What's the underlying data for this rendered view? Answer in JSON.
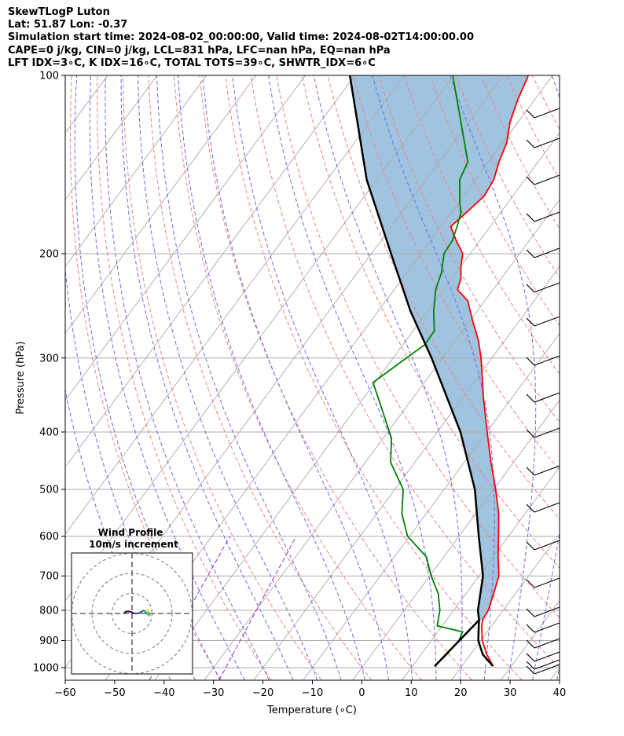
{
  "header": {
    "line1": "SkewTLogP Luton",
    "line2": "Lat: 51.87   Lon: -0.37",
    "line3": "Simulation start time: 2024-08-02_00:00:00, Valid time: 2024-08-02T14:00:00.00",
    "line4": "CAPE=0 j/kg, CIN=0 j/kg, LCL=831 hPa, LFC=nan hPa, EQ=nan hPa",
    "line5": "LFT IDX=3∘C, K IDX=16∘C, TOTAL TOTS=39∘C, SHWTR_IDX=6∘C"
  },
  "colors": {
    "temperature": "#ff0000",
    "dewpoint": "#008000",
    "parcel": "#000000",
    "fill": "#a0c4df",
    "dry_adiabat": "#f08080",
    "moist_adiabat": "#6a6af0",
    "mixing_ratio": "#9932cc",
    "isotherm": "#aaaaaa"
  },
  "chart_data": [
    {
      "type": "line",
      "subtype": "skew-t log-p",
      "xlabel": "Temperature (∘C)",
      "ylabel": "Pressure (hPa)",
      "xlim": [
        -60,
        40
      ],
      "ylim": [
        1050,
        100
      ],
      "x_ticks": [
        -60,
        -50,
        -40,
        -30,
        -20,
        -10,
        0,
        10,
        20,
        30,
        40
      ],
      "x_tick_labels": [
        "−60",
        "−50",
        "−40",
        "−30",
        "−20",
        "−10",
        "0",
        "10",
        "20",
        "30",
        "40"
      ],
      "y_ticks": [
        1000,
        900,
        800,
        700,
        600,
        500,
        400,
        300,
        200,
        100
      ],
      "y_tick_labels": [
        "1000",
        "900",
        "800",
        "700",
        "600",
        "500",
        "400",
        "300",
        "200",
        "100"
      ],
      "grid": true,
      "series": [
        {
          "id": "temperature",
          "p": [
            994,
            950,
            900,
            850,
            831,
            800,
            750,
            700,
            650,
            600,
            550,
            500,
            450,
            400,
            350,
            300,
            280,
            260,
            240,
            230,
            220,
            210,
            200,
            190,
            180,
            170,
            160,
            150,
            140,
            130,
            120,
            110,
            100
          ],
          "t": [
            26.3,
            23.3,
            20.3,
            18.0,
            17.3,
            17.0,
            15.6,
            14.0,
            11.0,
            8.0,
            4.7,
            0.4,
            -4.6,
            -9.9,
            -15.8,
            -22.2,
            -25.4,
            -29.4,
            -33.5,
            -37.2,
            -38.2,
            -40.0,
            -41.5,
            -44.8,
            -48.0,
            -46.9,
            -45.8,
            -46.3,
            -47.9,
            -49.2,
            -51.6,
            -53.4,
            -54.9
          ]
        },
        {
          "id": "dewpoint",
          "p": [
            994,
            950,
            900,
            870,
            850,
            800,
            750,
            700,
            650,
            600,
            550,
            500,
            450,
            410,
            350,
            330,
            300,
            285,
            270,
            250,
            230,
            215,
            200,
            190,
            180,
            170,
            165,
            150,
            140,
            100
          ],
          "t": [
            14.5,
            15.2,
            15.6,
            15.0,
            9.0,
            7.2,
            4.4,
            0.3,
            -3.5,
            -10.4,
            -14.9,
            -18.3,
            -24.9,
            -28.3,
            -37.1,
            -40.4,
            -37.3,
            -35.6,
            -35.7,
            -38.8,
            -41.6,
            -43.0,
            -45.3,
            -45.6,
            -46.7,
            -48.1,
            -49.5,
            -53.2,
            -54.2,
            -70.2
          ]
        },
        {
          "id": "parcel",
          "p": [
            994,
            950,
            900,
            850,
            831,
            800,
            700,
            600,
            500,
            400,
            300,
            250,
            200,
            150,
            100
          ],
          "t": [
            26.3,
            22.5,
            19.5,
            17.4,
            16.6,
            14.9,
            10.8,
            4.0,
            -3.8,
            -15.3,
            -32.2,
            -43.5,
            -56.0,
            -72.0,
            -91.0
          ]
        }
      ]
    },
    {
      "type": "scatter",
      "subtype": "hodograph",
      "title": "Wind Profile",
      "subtitle": "10m/s increment",
      "rings_ms": [
        10,
        20,
        30
      ],
      "u": [
        -4,
        -3,
        -2,
        -1,
        0,
        1,
        2,
        3,
        4,
        5,
        5.5,
        6,
        6.5,
        7,
        7.5,
        8,
        8.5,
        9,
        9,
        8.5,
        8,
        8,
        8,
        7.5,
        7
      ],
      "v": [
        0,
        1,
        1,
        1,
        0.5,
        0,
        0,
        0,
        0.5,
        1,
        1.5,
        1.5,
        1,
        0.5,
        0,
        -0.5,
        -1,
        -1,
        -0.5,
        0,
        1,
        1.5,
        2,
        2,
        1.5
      ]
    }
  ]
}
